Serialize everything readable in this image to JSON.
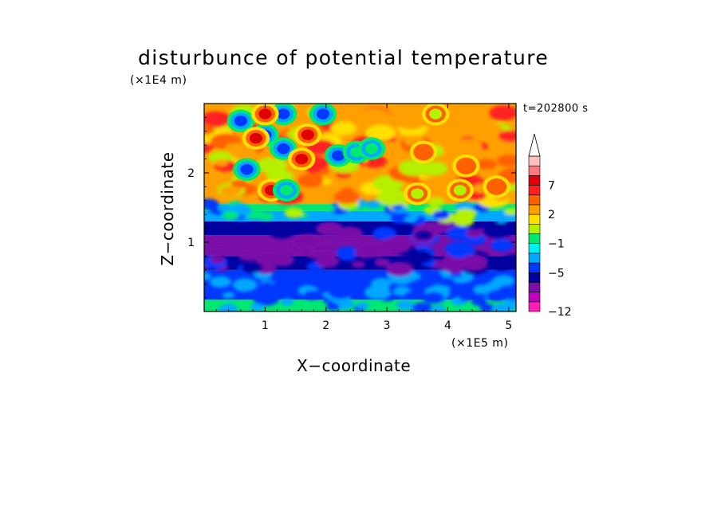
{
  "chart_data": {
    "type": "heatmap",
    "title": "disturbunce of potential temperature",
    "xlabel": "X−coordinate",
    "ylabel": "Z−coordinate",
    "x_unit": "(×1E5 m)",
    "y_unit": "(×1E4 m)",
    "time_label": "t=202800 s",
    "xlim": [
      0,
      5.12
    ],
    "ylim": [
      0,
      3.0
    ],
    "x_ticks": [
      1,
      2,
      3,
      4,
      5
    ],
    "x_tick_labels": [
      "1",
      "2",
      "3",
      "4",
      "5"
    ],
    "y_ticks": [
      1,
      2
    ],
    "y_tick_labels": [
      "1",
      "2"
    ],
    "colorbar": {
      "levels": [
        -12,
        -11,
        -9,
        -7,
        -5,
        -3,
        -2,
        -1,
        0,
        1,
        2,
        3,
        5,
        7,
        9,
        11
      ],
      "tick_values": [
        -12,
        -5,
        -1,
        2,
        7
      ],
      "tick_labels": [
        "−12",
        "−5",
        "−1",
        "2",
        "7"
      ],
      "colors": [
        "#ff1fb4",
        "#c000c0",
        "#7a10a8",
        "#0000a0",
        "#0038ff",
        "#00a8ff",
        "#00f0f0",
        "#00e870",
        "#b4f000",
        "#ffe000",
        "#ffa000",
        "#ff6000",
        "#ff2020",
        "#e00000",
        "#ff7a7a",
        "#ffc0c0"
      ],
      "extend": "max"
    },
    "layers": [
      {
        "z_range": [
          0,
          0.17
        ],
        "value": -0.5
      },
      {
        "z_range": [
          0.17,
          0.6
        ],
        "value": -4.0
      },
      {
        "z_range": [
          0.6,
          0.8
        ],
        "value": -6.0
      },
      {
        "z_range": [
          0.8,
          1.1
        ],
        "value": -8.0
      },
      {
        "z_range": [
          1.1,
          1.3
        ],
        "value": -6.0
      },
      {
        "z_range": [
          1.3,
          1.45
        ],
        "value": -3.0
      },
      {
        "z_range": [
          1.45,
          1.55
        ],
        "value": -0.5
      },
      {
        "z_range": [
          1.55,
          3.0
        ],
        "value": 2.5
      }
    ],
    "features": [
      {
        "x": 0.6,
        "z": 2.75,
        "value": -5
      },
      {
        "x": 1.0,
        "z": 2.55,
        "value": -5
      },
      {
        "x": 1.3,
        "z": 2.85,
        "value": -5
      },
      {
        "x": 1.3,
        "z": 2.35,
        "value": -5
      },
      {
        "x": 1.95,
        "z": 2.85,
        "value": -5
      },
      {
        "x": 0.7,
        "z": 2.05,
        "value": -5
      },
      {
        "x": 1.0,
        "z": 2.85,
        "value": 7
      },
      {
        "x": 0.85,
        "z": 2.5,
        "value": 7
      },
      {
        "x": 1.7,
        "z": 2.55,
        "value": 7
      },
      {
        "x": 1.6,
        "z": 2.2,
        "value": 7
      },
      {
        "x": 2.2,
        "z": 2.25,
        "value": -5
      },
      {
        "x": 1.1,
        "z": 1.75,
        "value": 7
      },
      {
        "x": 1.35,
        "z": 1.75,
        "value": -1
      },
      {
        "x": 2.5,
        "z": 2.3,
        "value": -1
      },
      {
        "x": 2.75,
        "z": 2.35,
        "value": -1
      },
      {
        "x": 3.6,
        "z": 2.3,
        "value": 3
      },
      {
        "x": 4.3,
        "z": 2.1,
        "value": 3
      },
      {
        "x": 4.8,
        "z": 1.8,
        "value": 3
      },
      {
        "x": 3.5,
        "z": 1.7,
        "value": 0
      },
      {
        "x": 4.2,
        "z": 1.75,
        "value": 0
      },
      {
        "x": 3.8,
        "z": 2.85,
        "value": 0
      }
    ]
  }
}
